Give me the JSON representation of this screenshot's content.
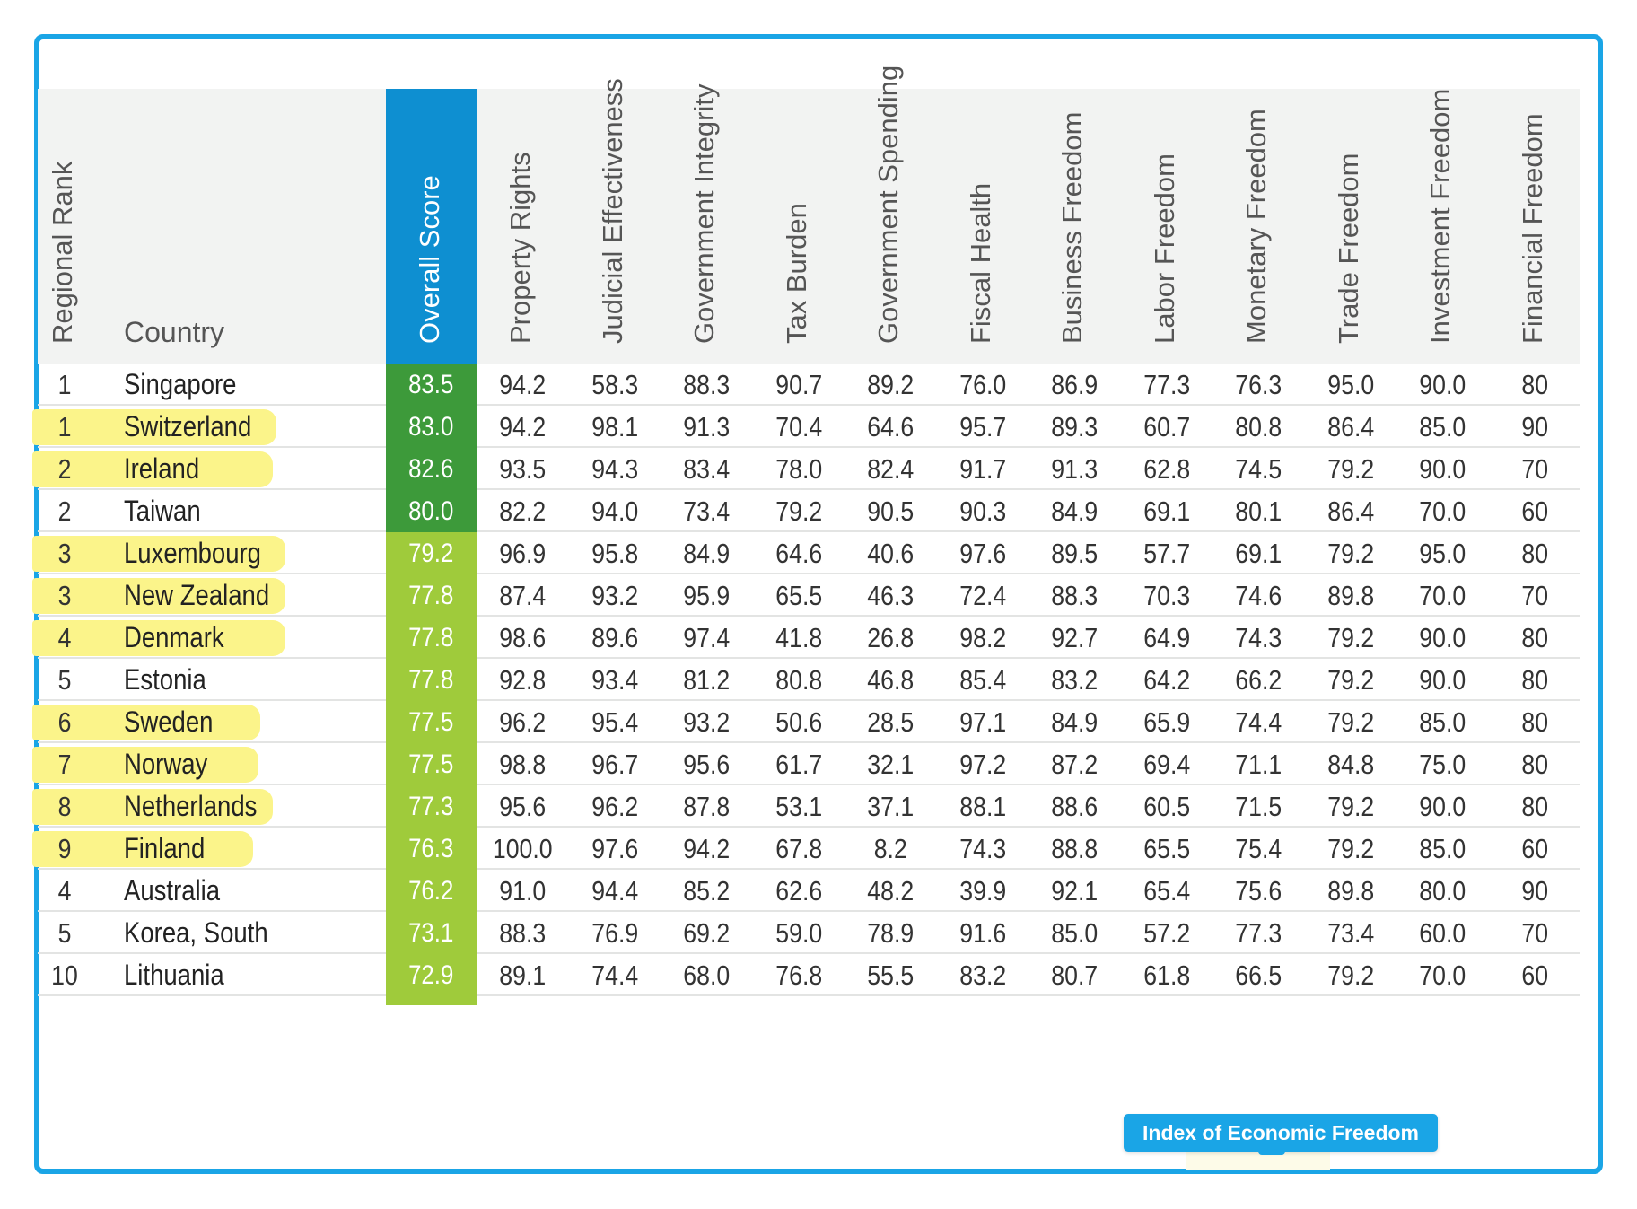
{
  "headers": {
    "rank": "Regional Rank",
    "country": "Country",
    "score": "Overall Score",
    "columns": [
      "Property Rights",
      "Judicial Effectiveness",
      "Government Integrity",
      "Tax Burden",
      "Government Spending",
      "Fiscal Health",
      "Business Freedom",
      "Labor Freedom",
      "Monetary Freedom",
      "Trade Freedom",
      "Investment Freedom",
      "Financial Freedom"
    ]
  },
  "colors": {
    "dark_green": "#3d9a3a",
    "light_green": "#9fcb3b",
    "score_header": "#0e8fd1",
    "highlight": "#fbf48a",
    "frame": "#1aa5e6"
  },
  "rows": [
    {
      "rank": "1",
      "country": "Singapore",
      "score": "83.5",
      "tier": "dark",
      "highlight": false,
      "values": [
        "94.2",
        "58.3",
        "88.3",
        "90.7",
        "89.2",
        "76.0",
        "86.9",
        "77.3",
        "76.3",
        "95.0",
        "90.0",
        "80"
      ]
    },
    {
      "rank": "1",
      "country": "Switzerland",
      "score": "83.0",
      "tier": "dark",
      "highlight": true,
      "values": [
        "94.2",
        "98.1",
        "91.3",
        "70.4",
        "64.6",
        "95.7",
        "89.3",
        "60.7",
        "80.8",
        "86.4",
        "85.0",
        "90"
      ]
    },
    {
      "rank": "2",
      "country": "Ireland",
      "score": "82.6",
      "tier": "dark",
      "highlight": true,
      "values": [
        "93.5",
        "94.3",
        "83.4",
        "78.0",
        "82.4",
        "91.7",
        "91.3",
        "62.8",
        "74.5",
        "79.2",
        "90.0",
        "70"
      ]
    },
    {
      "rank": "2",
      "country": "Taiwan",
      "score": "80.0",
      "tier": "dark",
      "highlight": false,
      "values": [
        "82.2",
        "94.0",
        "73.4",
        "79.2",
        "90.5",
        "90.3",
        "84.9",
        "69.1",
        "80.1",
        "86.4",
        "70.0",
        "60"
      ]
    },
    {
      "rank": "3",
      "country": "Luxembourg",
      "score": "79.2",
      "tier": "light",
      "highlight": true,
      "values": [
        "96.9",
        "95.8",
        "84.9",
        "64.6",
        "40.6",
        "97.6",
        "89.5",
        "57.7",
        "69.1",
        "79.2",
        "95.0",
        "80"
      ]
    },
    {
      "rank": "3",
      "country": "New Zealand",
      "score": "77.8",
      "tier": "light",
      "highlight": true,
      "values": [
        "87.4",
        "93.2",
        "95.9",
        "65.5",
        "46.3",
        "72.4",
        "88.3",
        "70.3",
        "74.6",
        "89.8",
        "70.0",
        "70"
      ]
    },
    {
      "rank": "4",
      "country": "Denmark",
      "score": "77.8",
      "tier": "light",
      "highlight": true,
      "values": [
        "98.6",
        "89.6",
        "97.4",
        "41.8",
        "26.8",
        "98.2",
        "92.7",
        "64.9",
        "74.3",
        "79.2",
        "90.0",
        "80"
      ]
    },
    {
      "rank": "5",
      "country": "Estonia",
      "score": "77.8",
      "tier": "light",
      "highlight": false,
      "values": [
        "92.8",
        "93.4",
        "81.2",
        "80.8",
        "46.8",
        "85.4",
        "83.2",
        "64.2",
        "66.2",
        "79.2",
        "90.0",
        "80"
      ]
    },
    {
      "rank": "6",
      "country": "Sweden",
      "score": "77.5",
      "tier": "light",
      "highlight": true,
      "values": [
        "96.2",
        "95.4",
        "93.2",
        "50.6",
        "28.5",
        "97.1",
        "84.9",
        "65.9",
        "74.4",
        "79.2",
        "85.0",
        "80"
      ]
    },
    {
      "rank": "7",
      "country": "Norway",
      "score": "77.5",
      "tier": "light",
      "highlight": true,
      "values": [
        "98.8",
        "96.7",
        "95.6",
        "61.7",
        "32.1",
        "97.2",
        "87.2",
        "69.4",
        "71.1",
        "84.8",
        "75.0",
        "80"
      ]
    },
    {
      "rank": "8",
      "country": "Netherlands",
      "score": "77.3",
      "tier": "light",
      "highlight": true,
      "values": [
        "95.6",
        "96.2",
        "87.8",
        "53.1",
        "37.1",
        "88.1",
        "88.6",
        "60.5",
        "71.5",
        "79.2",
        "90.0",
        "80"
      ]
    },
    {
      "rank": "9",
      "country": "Finland",
      "score": "76.3",
      "tier": "light",
      "highlight": true,
      "values": [
        "100.0",
        "97.6",
        "94.2",
        "67.8",
        "8.2",
        "74.3",
        "88.8",
        "65.5",
        "75.4",
        "79.2",
        "85.0",
        "60"
      ]
    },
    {
      "rank": "4",
      "country": "Australia",
      "score": "76.2",
      "tier": "light",
      "highlight": false,
      "values": [
        "91.0",
        "94.4",
        "85.2",
        "62.6",
        "48.2",
        "39.9",
        "92.1",
        "65.4",
        "75.6",
        "89.8",
        "80.0",
        "90"
      ]
    },
    {
      "rank": "5",
      "country": "Korea, South",
      "score": "73.1",
      "tier": "light",
      "highlight": false,
      "values": [
        "88.3",
        "76.9",
        "69.2",
        "59.0",
        "78.9",
        "91.6",
        "85.0",
        "57.2",
        "77.3",
        "73.4",
        "60.0",
        "70"
      ]
    },
    {
      "rank": "10",
      "country": "Lithuania",
      "score": "72.9",
      "tier": "light",
      "highlight": false,
      "values": [
        "89.1",
        "74.4",
        "68.0",
        "76.8",
        "55.5",
        "83.2",
        "80.7",
        "61.8",
        "66.5",
        "79.2",
        "70.0",
        "60"
      ]
    }
  ],
  "badge": {
    "label": "Index of Economic Freedom"
  }
}
